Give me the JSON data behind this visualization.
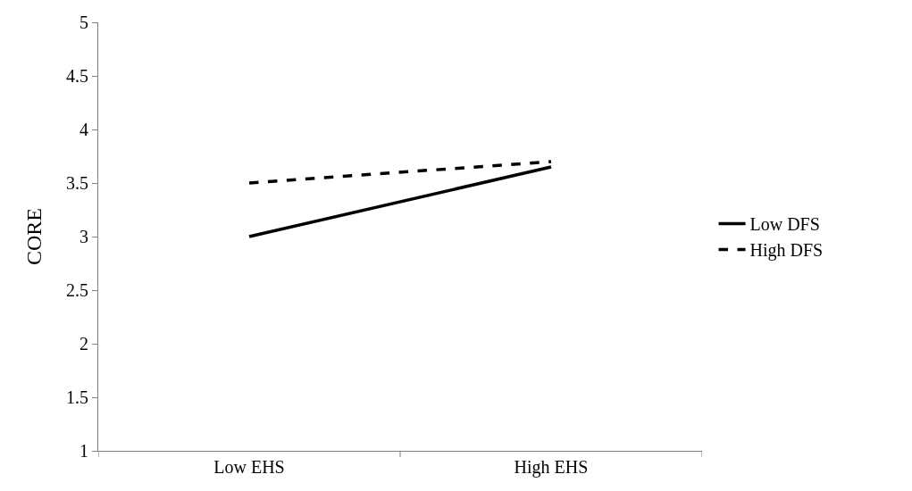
{
  "chart_data": {
    "type": "line",
    "ylabel": "CORE",
    "categories": [
      "Low EHS",
      "High EHS"
    ],
    "series": [
      {
        "name": "Low DFS",
        "color": "#000000",
        "values": [
          3.0,
          3.65
        ],
        "line_style": "solid"
      },
      {
        "name": "High DFS",
        "color": "#000000",
        "values": [
          3.5,
          3.7
        ],
        "line_style": "dashed"
      }
    ],
    "ylim": [
      1,
      5
    ],
    "yticks": [
      1,
      1.5,
      2,
      2.5,
      3,
      3.5,
      4,
      4.5,
      5
    ],
    "grid": false,
    "legend": "right",
    "marker": "none"
  }
}
